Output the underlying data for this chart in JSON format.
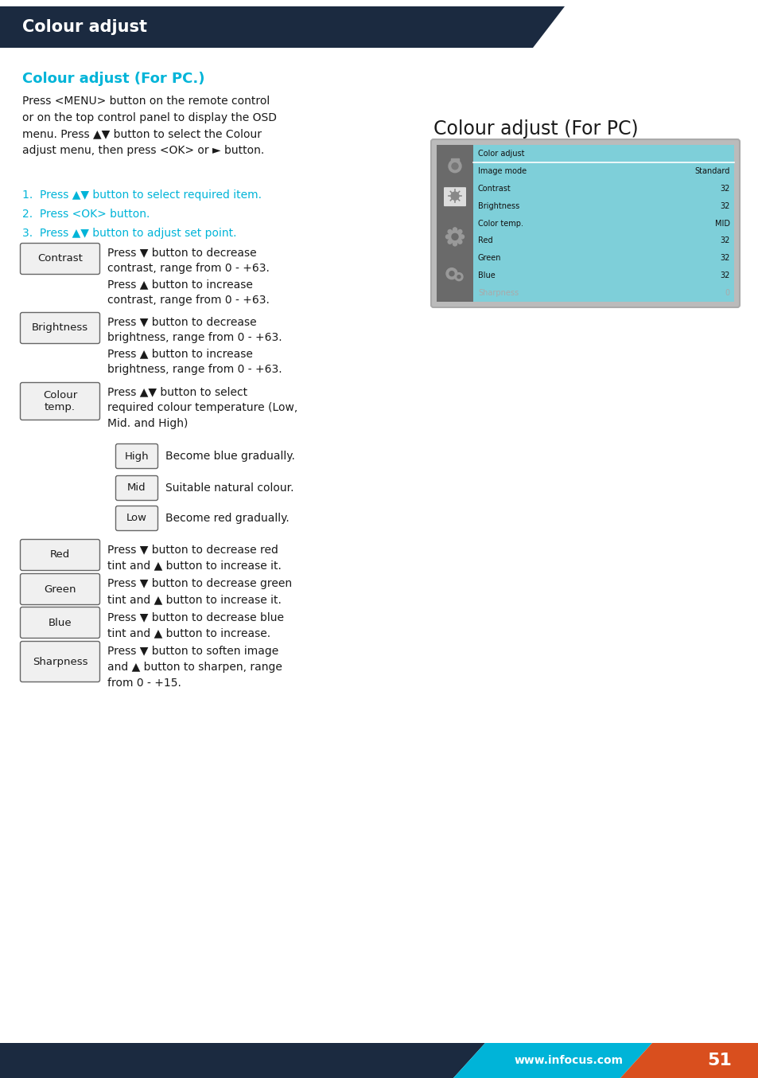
{
  "page_title": "Colour adjust",
  "header_bg": "#1b2a40",
  "header_text_color": "#ffffff",
  "bg_color": "#ffffff",
  "cyan_color": "#00b4d8",
  "body_text_color": "#1a1a1a",
  "footer_dark": "#1b2a40",
  "footer_cyan": "#00b4d8",
  "footer_orange": "#d94f1e",
  "footer_text": "www.infocus.com",
  "footer_page": "51",
  "section_title": "Colour adjust (For PC.)",
  "intro_text": "Press <MENU> button on the remote control\nor on the top control panel to display the OSD\nmenu. Press ▲▼ button to select the Colour\nadjust menu, then press <OK> or ► button.",
  "steps": [
    "Press ▲▼ button to select required item.",
    "Press <OK> button.",
    "Press ▲▼ button to adjust set point."
  ],
  "right_title": "Colour adjust (For PC)",
  "menu_items": [
    {
      "label": "Color adjust",
      "value": "",
      "header": true,
      "grayed": false
    },
    {
      "label": "Image mode",
      "value": "Standard",
      "header": false,
      "grayed": false
    },
    {
      "label": "Contrast",
      "value": "32",
      "header": false,
      "grayed": false
    },
    {
      "label": "Brightness",
      "value": "32",
      "header": false,
      "grayed": false
    },
    {
      "label": "Color temp.",
      "value": "MID",
      "header": false,
      "grayed": false
    },
    {
      "label": "Red",
      "value": "32",
      "header": false,
      "grayed": false
    },
    {
      "label": "Green",
      "value": "32",
      "header": false,
      "grayed": false
    },
    {
      "label": "Blue",
      "value": "32",
      "header": false,
      "grayed": false
    },
    {
      "label": "Sharpness",
      "value": "0",
      "header": false,
      "grayed": true
    }
  ],
  "button_items": [
    {
      "label": "Contrast",
      "text": "Press ▼ button to decrease\ncontrast, range from 0 - +63.\nPress ▲ button to increase\ncontrast, range from 0 - +63.",
      "multiline": false
    },
    {
      "label": "Brightness",
      "text": "Press ▼ button to decrease\nbrightness, range from 0 - +63.\nPress ▲ button to increase\nbrightness, range from 0 - +63.",
      "multiline": false
    },
    {
      "label": "Colour\ntemp.",
      "text": "Press ▲▼ button to select\nrequired colour temperature (Low,\nMid. and High)",
      "multiline": true
    }
  ],
  "sub_buttons": [
    {
      "label": "High",
      "text": "Become blue gradually."
    },
    {
      "label": "Mid",
      "text": "Suitable natural colour."
    },
    {
      "label": "Low",
      "text": "Become red gradually."
    }
  ],
  "bottom_buttons": [
    {
      "label": "Red",
      "text": "Press ▼ button to decrease red\ntint and ▲ button to increase it."
    },
    {
      "label": "Green",
      "text": "Press ▼ button to decrease green\ntint and ▲ button to increase it."
    },
    {
      "label": "Blue",
      "text": "Press ▼ button to decrease blue\ntint and ▲ button to increase."
    },
    {
      "label": "Sharpness",
      "text": "Press ▼ button to soften image\nand ▲ button to sharpen, range\nfrom 0 - +15."
    }
  ]
}
